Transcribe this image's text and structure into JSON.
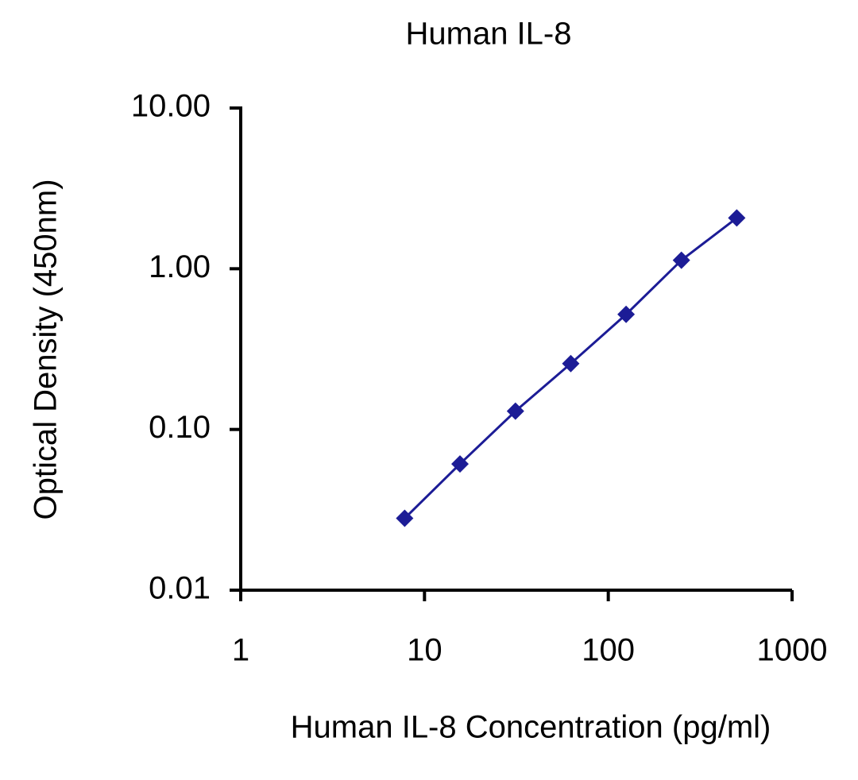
{
  "chart_data": {
    "type": "line",
    "title": "Human IL-8",
    "x_label": "Human IL-8 Concentration (pg/ml)",
    "y_label": "Optical Density (450nm)",
    "x": [
      7.8,
      15.6,
      31.25,
      62.5,
      125,
      250,
      500
    ],
    "series": [
      {
        "name": "Human IL-8",
        "color": "#1c1c96",
        "values": [
          0.028,
          0.061,
          0.13,
          0.257,
          0.52,
          1.13,
          2.07
        ]
      }
    ],
    "xscale": "log",
    "yscale": "log",
    "xlim": [
      1,
      1000
    ],
    "xticks": [
      1,
      10,
      100,
      1000
    ],
    "ylim": [
      0.01,
      10
    ],
    "yticks": [
      {
        "value": 0.01,
        "label": "0.01"
      },
      {
        "value": 0.1,
        "label": "0.10"
      },
      {
        "value": 1,
        "label": "1.00"
      },
      {
        "value": 10,
        "label": "10.00"
      }
    ],
    "grid": false,
    "marker": "diamond"
  }
}
